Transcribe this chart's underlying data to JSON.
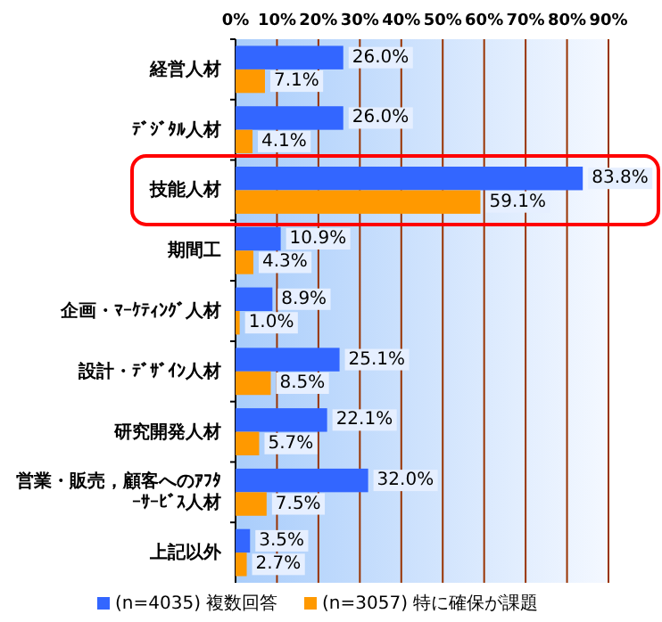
{
  "chart_data": {
    "type": "bar",
    "orientation": "horizontal",
    "categories": [
      "経営人材",
      "ﾃﾞｼﾞﾀﾙ人材",
      "技能人材",
      "期間工",
      "企画・ﾏｰｹﾃｨﾝｸﾞ人材",
      "設計・ﾃﾞｻﾞｲﾝ人材",
      "研究開発人材",
      "営業・販売，顧客へのｱﾌﾀｰｻｰﾋﾞｽ人材",
      "上記以外"
    ],
    "series": [
      {
        "name": "(n=4035) 複数回答",
        "color": "#3366ff",
        "values": [
          26.0,
          26.0,
          83.8,
          10.9,
          8.9,
          25.1,
          22.1,
          32.0,
          3.5
        ],
        "value_labels": [
          "26.0%",
          "26.0%",
          "83.8%",
          "10.9%",
          "8.9%",
          "25.1%",
          "22.1%",
          "32.0%",
          "3.5%"
        ]
      },
      {
        "name": "(n=3057) 特に確保が課題",
        "color": "#ff9900",
        "values": [
          7.1,
          4.1,
          59.1,
          4.3,
          1.0,
          8.5,
          5.7,
          7.5,
          2.7
        ],
        "value_labels": [
          "7.1%",
          "4.1%",
          "59.1%",
          "4.3%",
          "1.0%",
          "8.5%",
          "5.7%",
          "7.5%",
          "2.7%"
        ]
      }
    ],
    "xlim": [
      0,
      90
    ],
    "xticks": [
      {
        "value": 0,
        "label": "0%"
      },
      {
        "value": 10,
        "label": "10%"
      },
      {
        "value": 20,
        "label": "20%"
      },
      {
        "value": 30,
        "label": "30%"
      },
      {
        "value": 40,
        "label": "40%"
      },
      {
        "value": 50,
        "label": "50%"
      },
      {
        "value": 60,
        "label": "60%"
      },
      {
        "value": 70,
        "label": "70%"
      },
      {
        "value": 80,
        "label": "80%"
      },
      {
        "value": 90,
        "label": "90%"
      }
    ],
    "grid": "x",
    "legend": "bottom"
  }
}
